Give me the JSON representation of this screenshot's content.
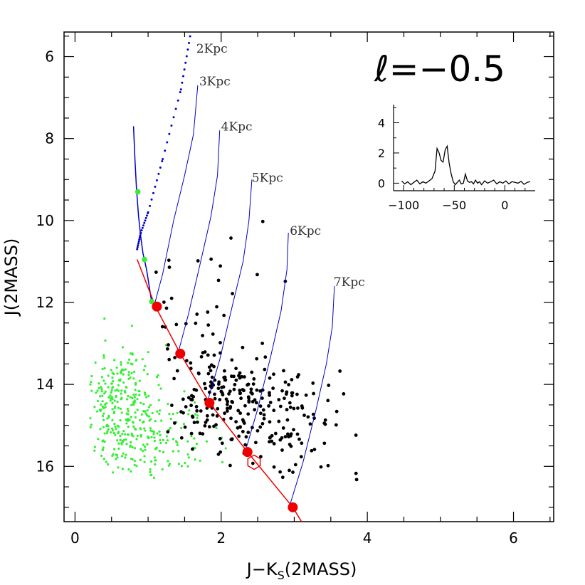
{
  "chart_data": {
    "type": "scatter",
    "title": "ℓ=−0.5",
    "xlabel": "J−K",
    "xlabel_sub": "S",
    "xlabel_suffix": "(2MASS)",
    "ylabel": "J(2MASS)",
    "xlim": [
      -0.15,
      6.55
    ],
    "ylim": [
      17.35,
      5.4
    ],
    "x_ticks": [
      0,
      2,
      4,
      6
    ],
    "y_ticks": [
      6,
      8,
      10,
      12,
      14,
      16
    ],
    "x_tick_labels": [
      "0",
      "2",
      "4",
      "6"
    ],
    "y_tick_labels": [
      "6",
      "8",
      "10",
      "12",
      "14",
      "16"
    ],
    "colors": {
      "black_stars": "#000000",
      "green_stars": "#33ee33",
      "track": "#ee0000",
      "isochrone": "#0000cc"
    },
    "red_clump_track": {
      "x": [
        0.85,
        1.1,
        1.44,
        1.84,
        2.36,
        2.98,
        3.1
      ],
      "y": [
        10.95,
        12.1,
        13.25,
        14.45,
        15.65,
        17.0,
        17.35
      ]
    },
    "red_markers": {
      "x": [
        1.12,
        1.44,
        1.84,
        2.36,
        2.98
      ],
      "y": [
        12.1,
        13.25,
        14.45,
        15.65,
        17.0
      ]
    },
    "open_marker": {
      "x": 2.45,
      "y": 15.9
    },
    "green_markers": {
      "x": [
        0.86,
        0.95,
        1.05
      ],
      "y": [
        9.3,
        10.95,
        11.98
      ]
    },
    "isochrones": [
      {
        "label": "2Kpc",
        "x": [
          0.85,
          0.9,
          1.0,
          1.2,
          1.45,
          1.58
        ],
        "y": [
          10.7,
          10.3,
          9.8,
          8.5,
          6.8,
          5.45
        ],
        "style": "dotted"
      },
      {
        "label": "3Kpc",
        "x": [
          1.08,
          1.2,
          1.35,
          1.5,
          1.62,
          1.68
        ],
        "y": [
          12.1,
          11.3,
          10.0,
          8.9,
          7.9,
          6.7
        ]
      },
      {
        "label": "4Kpc",
        "x": [
          1.4,
          1.55,
          1.72,
          1.86,
          1.95,
          1.98
        ],
        "y": [
          13.3,
          12.3,
          11.0,
          9.9,
          8.9,
          7.8
        ]
      },
      {
        "label": "5Kpc",
        "x": [
          1.8,
          1.98,
          2.15,
          2.3,
          2.38,
          2.42
        ],
        "y": [
          14.5,
          13.4,
          12.1,
          11.0,
          10.0,
          9.0
        ]
      },
      {
        "label": "6Kpc",
        "x": [
          2.32,
          2.5,
          2.68,
          2.82,
          2.9,
          2.92
        ],
        "y": [
          15.7,
          14.6,
          13.3,
          12.2,
          11.2,
          10.3
        ]
      },
      {
        "label": "7Kpc",
        "x": [
          2.93,
          3.12,
          3.3,
          3.44,
          3.52,
          3.55
        ],
        "y": [
          17.0,
          15.9,
          14.6,
          13.5,
          12.6,
          11.6
        ]
      }
    ],
    "iso_dwarf_branch": {
      "x": [
        0.8,
        0.82,
        0.84,
        0.87,
        0.9,
        0.93,
        0.98,
        1.05
      ],
      "y": [
        7.7,
        8.5,
        9.2,
        9.9,
        10.4,
        10.8,
        11.2,
        12.0
      ]
    },
    "iso_labels": [
      "2Kpc",
      "3Kpc",
      "4Kpc",
      "5Kpc",
      "6Kpc",
      "7Kpc"
    ],
    "inset": {
      "type": "line",
      "xlim": [
        -110,
        30
      ],
      "ylim": [
        -0.5,
        5.2
      ],
      "x_ticks": [
        -100,
        -50,
        0
      ],
      "y_ticks": [
        0,
        2,
        4
      ],
      "x_tick_labels": [
        "−100",
        "−50",
        "0"
      ],
      "y_tick_labels": [
        "0",
        "2",
        "4"
      ],
      "x": [
        -102,
        -99,
        -96,
        -93,
        -90,
        -87,
        -84,
        -81,
        -78,
        -75,
        -72,
        -69,
        -67,
        -65,
        -63,
        -61,
        -59,
        -57,
        -55,
        -53,
        -51,
        -49,
        -47,
        -45,
        -43,
        -41,
        -39,
        -37,
        -35,
        -33,
        -31,
        -29,
        -27,
        -25,
        -23,
        -20,
        -17,
        -14,
        -11,
        -8,
        -5,
        -2,
        1,
        4,
        7,
        10,
        13,
        16,
        19,
        22,
        25
      ],
      "y": [
        0.15,
        -0.05,
        0.1,
        -0.1,
        0.05,
        0.2,
        -0.05,
        0.1,
        0.0,
        0.15,
        0.3,
        0.8,
        2.3,
        2.0,
        1.5,
        1.4,
        2.2,
        2.45,
        1.3,
        0.6,
        0.1,
        -0.1,
        0.05,
        0.2,
        -0.05,
        0.0,
        0.6,
        0.15,
        0.05,
        0.1,
        -0.05,
        0.2,
        0.0,
        0.1,
        -0.1,
        0.15,
        0.0,
        0.1,
        0.2,
        -0.05,
        0.1,
        0.0,
        0.15,
        -0.05,
        0.1,
        0.05,
        0.0,
        0.12,
        -0.08,
        0.05,
        0.1
      ]
    }
  }
}
